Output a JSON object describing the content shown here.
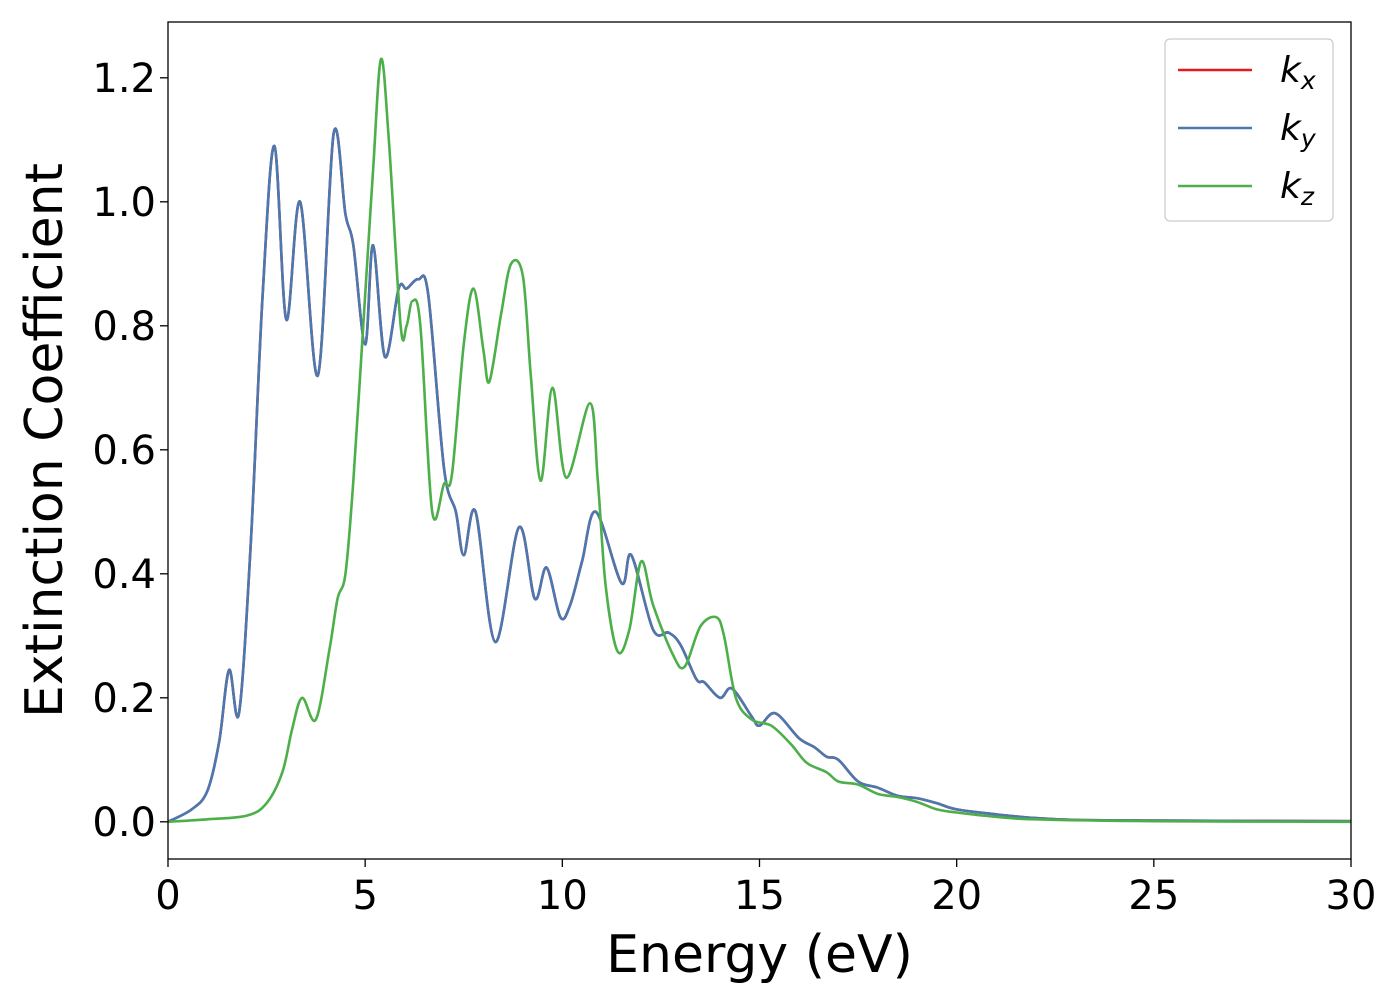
{
  "chart_data": {
    "type": "line",
    "xlabel": "Energy (eV)",
    "ylabel": "Extinction Coefficient",
    "xlim": [
      0,
      30
    ],
    "ylim": [
      -0.06,
      1.29
    ],
    "x_ticks": [
      "0",
      "5",
      "10",
      "15",
      "20",
      "25",
      "30"
    ],
    "y_ticks": [
      "0.0",
      "0.2",
      "0.4",
      "0.6",
      "0.8",
      "1.0",
      "1.2"
    ],
    "grid": false,
    "legend_position": "top-right",
    "series": [
      {
        "name": "k",
        "subscript": "x",
        "color": "#e41a1c",
        "points": [
          [
            0,
            0
          ],
          [
            0.6,
            0.02
          ],
          [
            1.0,
            0.05
          ],
          [
            1.3,
            0.13
          ],
          [
            1.55,
            0.245
          ],
          [
            1.8,
            0.175
          ],
          [
            2.1,
            0.45
          ],
          [
            2.4,
            0.85
          ],
          [
            2.7,
            1.09
          ],
          [
            3.0,
            0.81
          ],
          [
            3.35,
            1.0
          ],
          [
            3.8,
            0.72
          ],
          [
            4.2,
            1.11
          ],
          [
            4.5,
            0.98
          ],
          [
            4.7,
            0.93
          ],
          [
            5.0,
            0.77
          ],
          [
            5.2,
            0.93
          ],
          [
            5.5,
            0.75
          ],
          [
            5.85,
            0.86
          ],
          [
            6.05,
            0.86
          ],
          [
            6.35,
            0.875
          ],
          [
            6.6,
            0.85
          ],
          [
            7.0,
            0.57
          ],
          [
            7.3,
            0.5
          ],
          [
            7.5,
            0.43
          ],
          [
            7.8,
            0.5
          ],
          [
            8.3,
            0.29
          ],
          [
            8.9,
            0.475
          ],
          [
            9.3,
            0.36
          ],
          [
            9.6,
            0.41
          ],
          [
            9.95,
            0.33
          ],
          [
            10.2,
            0.35
          ],
          [
            10.5,
            0.42
          ],
          [
            10.85,
            0.5
          ],
          [
            11.5,
            0.385
          ],
          [
            11.75,
            0.43
          ],
          [
            12.3,
            0.31
          ],
          [
            12.7,
            0.305
          ],
          [
            13.0,
            0.285
          ],
          [
            13.4,
            0.23
          ],
          [
            13.6,
            0.225
          ],
          [
            14.0,
            0.2
          ],
          [
            14.3,
            0.215
          ],
          [
            14.8,
            0.17
          ],
          [
            15.0,
            0.155
          ],
          [
            15.4,
            0.175
          ],
          [
            16.0,
            0.135
          ],
          [
            16.4,
            0.12
          ],
          [
            16.7,
            0.105
          ],
          [
            17.0,
            0.1
          ],
          [
            17.5,
            0.065
          ],
          [
            18.0,
            0.055
          ],
          [
            18.5,
            0.042
          ],
          [
            19.0,
            0.038
          ],
          [
            19.5,
            0.03
          ],
          [
            20.0,
            0.02
          ],
          [
            21.0,
            0.012
          ],
          [
            22.0,
            0.006
          ],
          [
            23.0,
            0.003
          ],
          [
            25.0,
            0.002
          ],
          [
            30.0,
            0.001
          ]
        ]
      },
      {
        "name": "k",
        "subscript": "y",
        "color": "#4a78b0",
        "points": [
          [
            0,
            0
          ],
          [
            0.6,
            0.02
          ],
          [
            1.0,
            0.05
          ],
          [
            1.3,
            0.13
          ],
          [
            1.55,
            0.245
          ],
          [
            1.8,
            0.175
          ],
          [
            2.1,
            0.45
          ],
          [
            2.4,
            0.85
          ],
          [
            2.7,
            1.09
          ],
          [
            3.0,
            0.81
          ],
          [
            3.35,
            1.0
          ],
          [
            3.8,
            0.72
          ],
          [
            4.2,
            1.11
          ],
          [
            4.5,
            0.98
          ],
          [
            4.7,
            0.93
          ],
          [
            5.0,
            0.77
          ],
          [
            5.2,
            0.93
          ],
          [
            5.5,
            0.75
          ],
          [
            5.85,
            0.86
          ],
          [
            6.05,
            0.86
          ],
          [
            6.35,
            0.875
          ],
          [
            6.6,
            0.85
          ],
          [
            7.0,
            0.57
          ],
          [
            7.3,
            0.5
          ],
          [
            7.5,
            0.43
          ],
          [
            7.8,
            0.5
          ],
          [
            8.3,
            0.29
          ],
          [
            8.9,
            0.475
          ],
          [
            9.3,
            0.36
          ],
          [
            9.6,
            0.41
          ],
          [
            9.95,
            0.33
          ],
          [
            10.2,
            0.35
          ],
          [
            10.5,
            0.42
          ],
          [
            10.85,
            0.5
          ],
          [
            11.5,
            0.385
          ],
          [
            11.75,
            0.43
          ],
          [
            12.3,
            0.31
          ],
          [
            12.7,
            0.305
          ],
          [
            13.0,
            0.285
          ],
          [
            13.4,
            0.23
          ],
          [
            13.6,
            0.225
          ],
          [
            14.0,
            0.2
          ],
          [
            14.3,
            0.215
          ],
          [
            14.8,
            0.17
          ],
          [
            15.0,
            0.155
          ],
          [
            15.4,
            0.175
          ],
          [
            16.0,
            0.135
          ],
          [
            16.4,
            0.12
          ],
          [
            16.7,
            0.105
          ],
          [
            17.0,
            0.1
          ],
          [
            17.5,
            0.065
          ],
          [
            18.0,
            0.055
          ],
          [
            18.5,
            0.042
          ],
          [
            19.0,
            0.038
          ],
          [
            19.5,
            0.03
          ],
          [
            20.0,
            0.02
          ],
          [
            21.0,
            0.012
          ],
          [
            22.0,
            0.006
          ],
          [
            23.0,
            0.003
          ],
          [
            25.0,
            0.002
          ],
          [
            30.0,
            0.001
          ]
        ]
      },
      {
        "name": "k",
        "subscript": "z",
        "color": "#4daf4a",
        "points": [
          [
            0,
            0
          ],
          [
            1.0,
            0.004
          ],
          [
            2.0,
            0.01
          ],
          [
            2.5,
            0.03
          ],
          [
            2.9,
            0.08
          ],
          [
            3.15,
            0.15
          ],
          [
            3.4,
            0.2
          ],
          [
            3.75,
            0.165
          ],
          [
            4.1,
            0.28
          ],
          [
            4.3,
            0.36
          ],
          [
            4.5,
            0.4
          ],
          [
            4.7,
            0.55
          ],
          [
            5.0,
            0.85
          ],
          [
            5.2,
            1.05
          ],
          [
            5.4,
            1.23
          ],
          [
            5.6,
            1.1
          ],
          [
            5.9,
            0.8
          ],
          [
            6.05,
            0.8
          ],
          [
            6.2,
            0.84
          ],
          [
            6.4,
            0.8
          ],
          [
            6.7,
            0.5
          ],
          [
            7.0,
            0.545
          ],
          [
            7.2,
            0.56
          ],
          [
            7.5,
            0.77
          ],
          [
            7.75,
            0.86
          ],
          [
            8.0,
            0.76
          ],
          [
            8.15,
            0.71
          ],
          [
            8.45,
            0.82
          ],
          [
            8.7,
            0.9
          ],
          [
            9.0,
            0.88
          ],
          [
            9.2,
            0.72
          ],
          [
            9.45,
            0.55
          ],
          [
            9.75,
            0.7
          ],
          [
            10.1,
            0.555
          ],
          [
            10.7,
            0.675
          ],
          [
            10.9,
            0.55
          ],
          [
            11.1,
            0.38
          ],
          [
            11.4,
            0.275
          ],
          [
            11.7,
            0.31
          ],
          [
            12.0,
            0.42
          ],
          [
            12.3,
            0.35
          ],
          [
            12.8,
            0.27
          ],
          [
            13.1,
            0.25
          ],
          [
            13.5,
            0.315
          ],
          [
            13.9,
            0.33
          ],
          [
            14.1,
            0.3
          ],
          [
            14.4,
            0.2
          ],
          [
            14.8,
            0.165
          ],
          [
            15.3,
            0.155
          ],
          [
            15.8,
            0.125
          ],
          [
            16.2,
            0.095
          ],
          [
            16.7,
            0.08
          ],
          [
            17.0,
            0.065
          ],
          [
            17.5,
            0.06
          ],
          [
            18.0,
            0.045
          ],
          [
            18.5,
            0.04
          ],
          [
            19.0,
            0.032
          ],
          [
            19.5,
            0.02
          ],
          [
            20.0,
            0.015
          ],
          [
            21.0,
            0.008
          ],
          [
            22.0,
            0.004
          ],
          [
            25.0,
            0.001
          ],
          [
            30.0,
            0.0
          ]
        ]
      }
    ]
  }
}
